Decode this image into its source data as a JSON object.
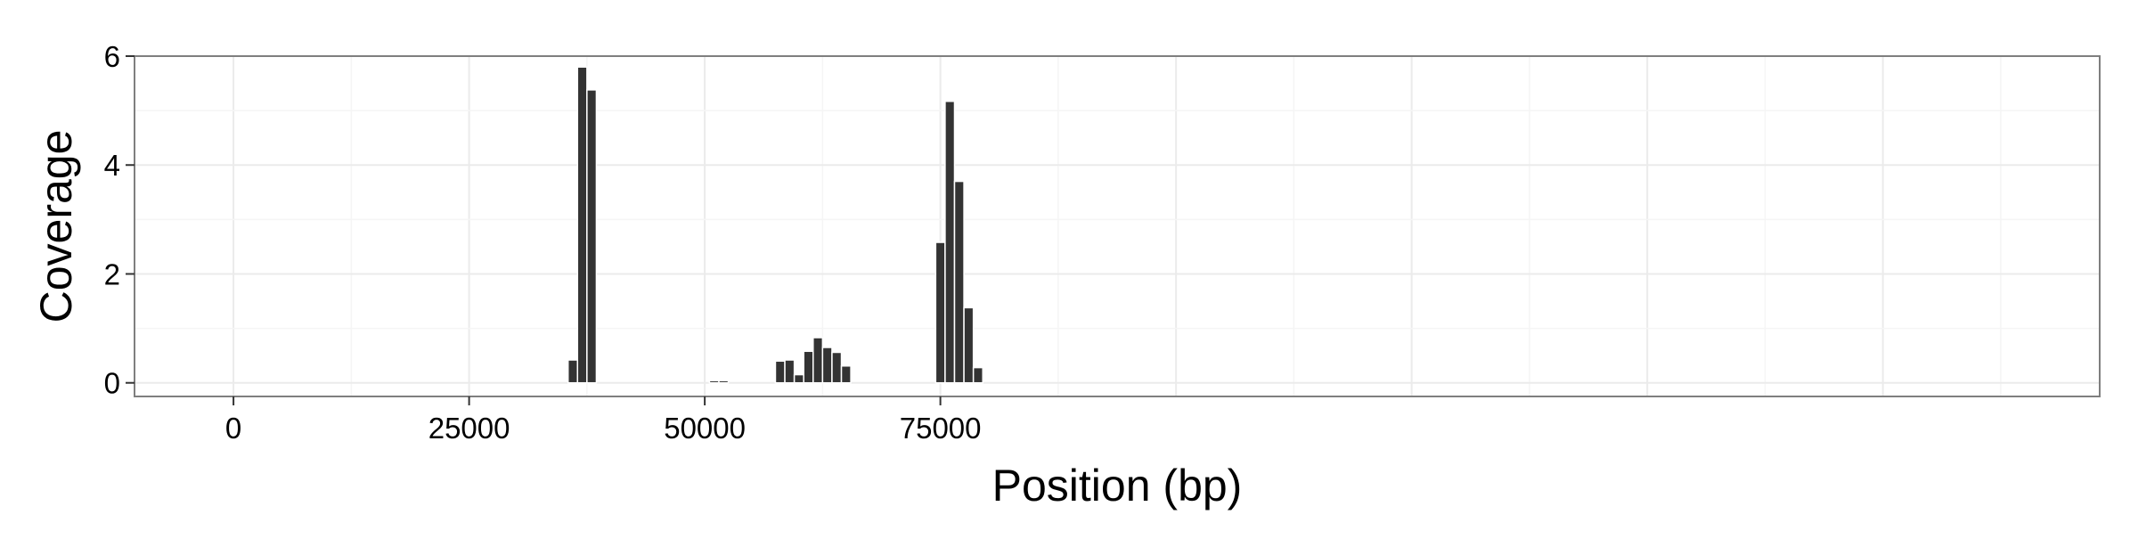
{
  "chart_data": {
    "type": "bar",
    "xlabel": "Position (bp)",
    "ylabel": "Coverage",
    "xlim": [
      -10500,
      198000
    ],
    "ylim": [
      -0.25,
      6.0
    ],
    "xticks": [
      0,
      25000,
      50000,
      75000
    ],
    "yticks": [
      0,
      2,
      4,
      6
    ],
    "grid": true,
    "bin_width": 1000,
    "series": [
      {
        "bins": [
          36000,
          37000,
          38000,
          51000,
          52000,
          58000,
          59000,
          60000,
          61000,
          62000,
          63000,
          64000,
          65000,
          75000,
          76000,
          77000,
          78000,
          79000
        ],
        "values": [
          0.42,
          5.8,
          5.38,
          0.04,
          0.04,
          0.4,
          0.42,
          0.15,
          0.58,
          0.83,
          0.65,
          0.56,
          0.31,
          2.58,
          5.17,
          3.7,
          1.38,
          0.28
        ]
      }
    ],
    "colors": {
      "bar": "#333333",
      "panel_border": "#7f7f7f",
      "grid_major": "#ebebeb",
      "grid_minor": "#f5f5f5"
    }
  }
}
